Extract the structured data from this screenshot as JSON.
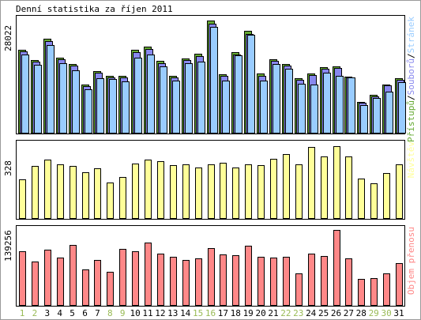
{
  "chart_data": {
    "type": "bar",
    "title": "Denní statistika za říjen 2011",
    "colors": {
      "background": "#ffffff",
      "frame": "#9a9a9a",
      "panel_border": "#000000",
      "hits": "#66aa33",
      "files": "#8888ee",
      "pages": "#99ccff",
      "visits": "#ffff99",
      "kbytes": "#ff8888",
      "weekday_label": "#000000",
      "weekend_label": "#99bb55"
    },
    "categories": [
      "1",
      "2",
      "3",
      "4",
      "5",
      "6",
      "7",
      "8",
      "9",
      "10",
      "11",
      "12",
      "13",
      "14",
      "15",
      "16",
      "17",
      "18",
      "19",
      "20",
      "21",
      "22",
      "23",
      "24",
      "25",
      "26",
      "27",
      "28",
      "29",
      "30",
      "31"
    ],
    "weekend_days": [
      "1",
      "2",
      "8",
      "9",
      "15",
      "16",
      "22",
      "23",
      "29",
      "30"
    ],
    "panels": [
      {
        "id": "traffic",
        "max_label": "28022",
        "max": 28022,
        "legend": [
          {
            "text": "Přístupů",
            "color": "#66aa33"
          },
          {
            "text": "/",
            "color": "#000000"
          },
          {
            "text": "Souborů",
            "color": "#8888ee"
          },
          {
            "text": "/",
            "color": "#000000"
          },
          {
            "text": "Stránek",
            "color": "#99ccff"
          }
        ],
        "series": [
          {
            "name": "Přístupů",
            "values": [
              20600,
              18000,
              23400,
              18700,
              17100,
              11900,
              15300,
              14200,
              14200,
              20600,
              21400,
              17800,
              14200,
              18500,
              19600,
              27800,
              14500,
              19900,
              25200,
              14600,
              18300,
              17100,
              13500,
              14700,
              16200,
              16500,
              14000,
              7600,
              9400,
              12000,
              13500
            ]
          },
          {
            "name": "Souborů",
            "values": [
              20100,
              17600,
              22800,
              18200,
              16700,
              11600,
              14900,
              13800,
              13800,
              20000,
              20800,
              17300,
              13800,
              18000,
              19100,
              27100,
              14100,
              19400,
              24500,
              14200,
              17800,
              16700,
              13200,
              14300,
              15800,
              16000,
              13700,
              7400,
              9100,
              11700,
              13100
            ]
          },
          {
            "name": "Stránek",
            "values": [
              19400,
              16900,
              21700,
              17300,
              15500,
              10800,
              13600,
              13400,
              12700,
              18700,
              19400,
              16500,
              13000,
              17300,
              17600,
              26200,
              12900,
              19200,
              24300,
              12900,
              17100,
              15800,
              12100,
              11900,
              14900,
              14200,
              13700,
              6800,
              8600,
              10100,
              12600
            ]
          }
        ]
      },
      {
        "id": "visits",
        "max_label": "328",
        "max": 328,
        "legend": [
          {
            "text": "Návštěv",
            "color": "#ffff99"
          }
        ],
        "series": [
          {
            "name": "Návštěv",
            "values": [
              173,
              232,
              260,
              240,
              232,
              205,
              223,
              157,
              185,
              242,
              260,
              255,
              236,
              240,
              225,
              240,
              248,
              227,
              240,
              236,
              266,
              285,
              240,
              319,
              275,
              322,
              276,
              176,
              155,
              202,
              240
            ]
          }
        ]
      },
      {
        "id": "kbytes",
        "max_label": "139256",
        "max": 139256,
        "legend": [
          {
            "text": "Objem přenosu",
            "color": "#ff8888"
          }
        ],
        "series": [
          {
            "name": "Objem přenosu",
            "values": [
              99000,
              81000,
              103000,
              88000,
              112000,
              66000,
              84000,
              61000,
              104000,
              100000,
              116000,
              96000,
              89000,
              83000,
              86000,
              106000,
              94000,
              93000,
              110000,
              89000,
              88000,
              90000,
              59000,
              95000,
              91000,
              139256,
              87000,
              48000,
              50000,
              58000,
              77000
            ]
          }
        ]
      }
    ]
  }
}
